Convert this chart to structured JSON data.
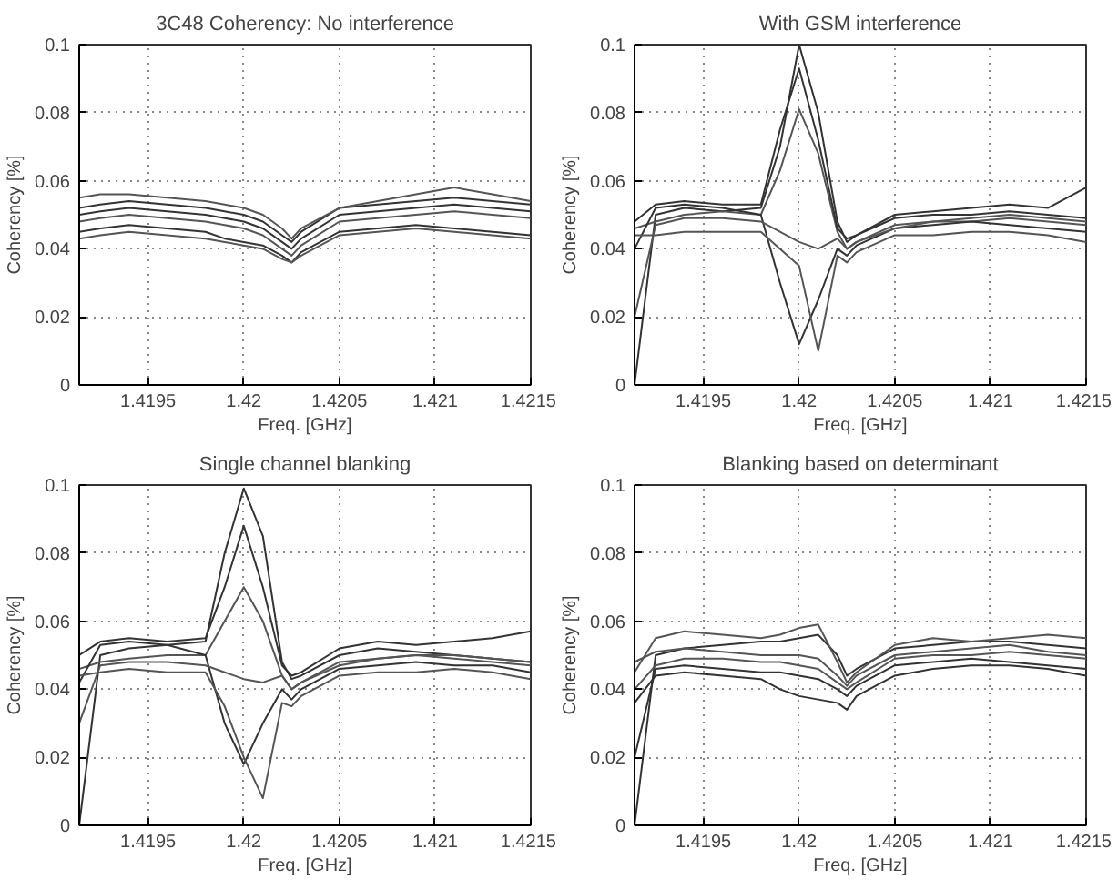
{
  "chart_data": [
    {
      "type": "line",
      "title": "3C48 Coherency: No interference",
      "xlabel": "Freq. [GHz]",
      "ylabel": "Coherency [%]",
      "xlim": [
        1.41914,
        1.4215
      ],
      "ylim": [
        0,
        0.1
      ],
      "xticks": [
        1.4195,
        1.42,
        1.4205,
        1.421,
        1.4215
      ],
      "yticks": [
        0,
        0.02,
        0.04,
        0.06,
        0.08,
        0.1
      ],
      "grid": true,
      "x": [
        1.41914,
        1.41925,
        1.4194,
        1.4196,
        1.4198,
        1.4199,
        1.42,
        1.4201,
        1.4202,
        1.42025,
        1.4203,
        1.4205,
        1.4207,
        1.4209,
        1.4211,
        1.4213,
        1.4215
      ],
      "series": [
        {
          "color": "#333333",
          "values": [
            0.052,
            0.053,
            0.054,
            0.053,
            0.052,
            0.051,
            0.05,
            0.048,
            0.044,
            0.042,
            0.045,
            0.052,
            0.053,
            0.054,
            0.055,
            0.054,
            0.053
          ]
        },
        {
          "color": "#555555",
          "values": [
            0.048,
            0.049,
            0.05,
            0.049,
            0.048,
            0.047,
            0.046,
            0.044,
            0.04,
            0.038,
            0.041,
            0.048,
            0.049,
            0.05,
            0.051,
            0.05,
            0.049
          ]
        },
        {
          "color": "#333333",
          "values": [
            0.045,
            0.046,
            0.047,
            0.046,
            0.045,
            0.043,
            0.042,
            0.041,
            0.038,
            0.036,
            0.039,
            0.045,
            0.046,
            0.047,
            0.046,
            0.045,
            0.044
          ]
        },
        {
          "color": "#555555",
          "values": [
            0.055,
            0.056,
            0.056,
            0.055,
            0.054,
            0.053,
            0.052,
            0.05,
            0.046,
            0.043,
            0.046,
            0.052,
            0.054,
            0.056,
            0.058,
            0.056,
            0.054
          ]
        },
        {
          "color": "#333333",
          "values": [
            0.05,
            0.051,
            0.052,
            0.051,
            0.05,
            0.049,
            0.048,
            0.046,
            0.042,
            0.04,
            0.043,
            0.05,
            0.051,
            0.052,
            0.053,
            0.052,
            0.051
          ]
        },
        {
          "color": "#555555",
          "values": [
            0.043,
            0.044,
            0.045,
            0.044,
            0.043,
            0.042,
            0.041,
            0.04,
            0.037,
            0.036,
            0.038,
            0.044,
            0.045,
            0.046,
            0.045,
            0.044,
            0.043
          ]
        }
      ]
    },
    {
      "type": "line",
      "title": "With GSM interference",
      "xlabel": "Freq. [GHz]",
      "ylabel": "Coherency [%]",
      "xlim": [
        1.41914,
        1.4215
      ],
      "ylim": [
        0,
        0.1
      ],
      "xticks": [
        1.4195,
        1.42,
        1.4205,
        1.421,
        1.4215
      ],
      "yticks": [
        0,
        0.02,
        0.04,
        0.06,
        0.08,
        0.1
      ],
      "grid": true,
      "x": [
        1.41914,
        1.41925,
        1.4194,
        1.4196,
        1.4198,
        1.4199,
        1.42,
        1.4201,
        1.4202,
        1.42025,
        1.4203,
        1.4205,
        1.4207,
        1.4209,
        1.4211,
        1.4213,
        1.4215
      ],
      "series": [
        {
          "color": "#333333",
          "values": [
            0,
            0.05,
            0.052,
            0.051,
            0.052,
            0.07,
            0.1,
            0.08,
            0.048,
            0.042,
            0.044,
            0.049,
            0.05,
            0.05,
            0.051,
            0.05,
            0.049
          ]
        },
        {
          "color": "#555555",
          "values": [
            0.046,
            0.048,
            0.05,
            0.051,
            0.05,
            0.063,
            0.081,
            0.068,
            0.045,
            0.04,
            0.042,
            0.047,
            0.048,
            0.048,
            0.049,
            0.048,
            0.047
          ]
        },
        {
          "color": "#333333",
          "values": [
            0.04,
            0.052,
            0.053,
            0.052,
            0.05,
            0.03,
            0.012,
            0.025,
            0.04,
            0.038,
            0.041,
            0.046,
            0.047,
            0.048,
            0.047,
            0.046,
            0.045
          ]
        },
        {
          "color": "#555555",
          "values": [
            0.044,
            0.044,
            0.045,
            0.045,
            0.045,
            0.04,
            0.035,
            0.01,
            0.038,
            0.036,
            0.039,
            0.044,
            0.044,
            0.045,
            0.045,
            0.044,
            0.042
          ]
        },
        {
          "color": "#333333",
          "values": [
            0.048,
            0.053,
            0.054,
            0.053,
            0.053,
            0.075,
            0.093,
            0.072,
            0.046,
            0.043,
            0.044,
            0.05,
            0.051,
            0.052,
            0.053,
            0.052,
            0.058
          ]
        },
        {
          "color": "#555555",
          "values": [
            0.02,
            0.047,
            0.049,
            0.049,
            0.048,
            0.045,
            0.042,
            0.04,
            0.043,
            0.04,
            0.042,
            0.046,
            0.048,
            0.049,
            0.05,
            0.049,
            0.048
          ]
        }
      ]
    },
    {
      "type": "line",
      "title": "Single channel blanking",
      "xlabel": "Freq. [GHz]",
      "ylabel": "Coherency [%]",
      "xlim": [
        1.41914,
        1.4215
      ],
      "ylim": [
        0,
        0.1
      ],
      "xticks": [
        1.4195,
        1.42,
        1.4205,
        1.421,
        1.4215
      ],
      "yticks": [
        0,
        0.02,
        0.04,
        0.06,
        0.08,
        0.1
      ],
      "grid": true,
      "x": [
        1.41914,
        1.41925,
        1.4194,
        1.4196,
        1.4198,
        1.4199,
        1.42,
        1.4201,
        1.4202,
        1.42025,
        1.4203,
        1.4205,
        1.4207,
        1.4209,
        1.4211,
        1.4213,
        1.4215
      ],
      "series": [
        {
          "color": "#333333",
          "values": [
            0,
            0.05,
            0.052,
            0.053,
            0.054,
            0.08,
            0.099,
            0.085,
            0.048,
            0.043,
            0.044,
            0.05,
            0.052,
            0.051,
            0.05,
            0.049,
            0.048
          ]
        },
        {
          "color": "#555555",
          "values": [
            0.046,
            0.048,
            0.049,
            0.05,
            0.05,
            0.06,
            0.07,
            0.06,
            0.044,
            0.04,
            0.042,
            0.048,
            0.049,
            0.05,
            0.049,
            0.048,
            0.047
          ]
        },
        {
          "color": "#333333",
          "values": [
            0.042,
            0.053,
            0.054,
            0.053,
            0.05,
            0.03,
            0.018,
            0.03,
            0.04,
            0.037,
            0.04,
            0.046,
            0.047,
            0.048,
            0.047,
            0.047,
            0.045
          ]
        },
        {
          "color": "#555555",
          "values": [
            0.044,
            0.045,
            0.046,
            0.045,
            0.045,
            0.035,
            0.02,
            0.008,
            0.036,
            0.035,
            0.038,
            0.044,
            0.045,
            0.045,
            0.046,
            0.045,
            0.043
          ]
        },
        {
          "color": "#333333",
          "values": [
            0.05,
            0.054,
            0.055,
            0.054,
            0.055,
            0.07,
            0.088,
            0.07,
            0.047,
            0.044,
            0.045,
            0.052,
            0.054,
            0.053,
            0.054,
            0.055,
            0.057
          ]
        },
        {
          "color": "#555555",
          "values": [
            0.03,
            0.047,
            0.048,
            0.048,
            0.047,
            0.045,
            0.043,
            0.042,
            0.044,
            0.04,
            0.042,
            0.047,
            0.049,
            0.05,
            0.05,
            0.049,
            0.048
          ]
        }
      ]
    },
    {
      "type": "line",
      "title": "Blanking based on determinant",
      "xlabel": "Freq. [GHz]",
      "ylabel": "Coherency [%]",
      "xlim": [
        1.41914,
        1.4215
      ],
      "ylim": [
        0,
        0.1
      ],
      "xticks": [
        1.4195,
        1.42,
        1.4205,
        1.421,
        1.4215
      ],
      "yticks": [
        0,
        0.02,
        0.04,
        0.06,
        0.08,
        0.1
      ],
      "grid": true,
      "x": [
        1.41914,
        1.41925,
        1.4194,
        1.4196,
        1.4198,
        1.4199,
        1.42,
        1.4201,
        1.4202,
        1.42025,
        1.4203,
        1.4205,
        1.4207,
        1.4209,
        1.4211,
        1.4213,
        1.4215
      ],
      "series": [
        {
          "color": "#333333",
          "values": [
            0,
            0.05,
            0.052,
            0.053,
            0.054,
            0.054,
            0.055,
            0.056,
            0.05,
            0.044,
            0.046,
            0.052,
            0.053,
            0.054,
            0.054,
            0.053,
            0.052
          ]
        },
        {
          "color": "#555555",
          "values": [
            0.04,
            0.047,
            0.049,
            0.049,
            0.048,
            0.048,
            0.047,
            0.046,
            0.042,
            0.04,
            0.042,
            0.049,
            0.05,
            0.05,
            0.051,
            0.05,
            0.049
          ]
        },
        {
          "color": "#333333",
          "values": [
            0.036,
            0.044,
            0.045,
            0.044,
            0.043,
            0.04,
            0.038,
            0.037,
            0.036,
            0.034,
            0.038,
            0.044,
            0.046,
            0.047,
            0.047,
            0.046,
            0.044
          ]
        },
        {
          "color": "#555555",
          "values": [
            0.045,
            0.055,
            0.057,
            0.056,
            0.055,
            0.056,
            0.058,
            0.059,
            0.048,
            0.042,
            0.045,
            0.053,
            0.055,
            0.054,
            0.055,
            0.056,
            0.055
          ]
        },
        {
          "color": "#333333",
          "values": [
            0.02,
            0.046,
            0.047,
            0.046,
            0.045,
            0.045,
            0.044,
            0.043,
            0.04,
            0.038,
            0.041,
            0.047,
            0.048,
            0.049,
            0.048,
            0.047,
            0.046
          ]
        },
        {
          "color": "#555555",
          "values": [
            0.048,
            0.051,
            0.052,
            0.051,
            0.05,
            0.05,
            0.05,
            0.049,
            0.044,
            0.041,
            0.044,
            0.05,
            0.051,
            0.052,
            0.053,
            0.051,
            0.05
          ]
        }
      ]
    }
  ]
}
